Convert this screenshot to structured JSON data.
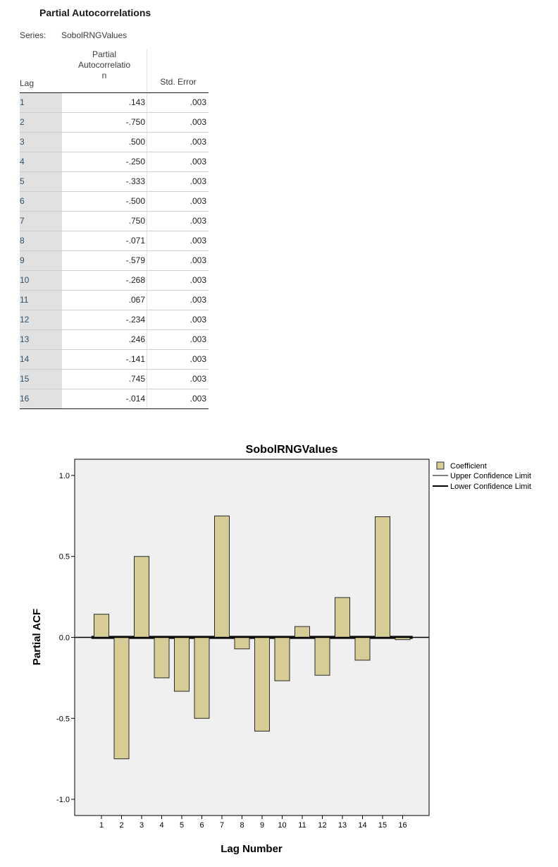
{
  "table": {
    "title": "Partial Autocorrelations",
    "series_label": "Series:",
    "series_name": "SobolRNGValues",
    "headers": {
      "lag": "Lag",
      "pacf_line1": "Partial",
      "pacf_line2": "Autocorrelatio",
      "pacf_line3": "n",
      "std_error": "Std. Error"
    },
    "rows": [
      {
        "lag": "1",
        "pacf": ".143",
        "se": ".003"
      },
      {
        "lag": "2",
        "pacf": "-.750",
        "se": ".003"
      },
      {
        "lag": "3",
        "pacf": ".500",
        "se": ".003"
      },
      {
        "lag": "4",
        "pacf": "-.250",
        "se": ".003"
      },
      {
        "lag": "5",
        "pacf": "-.333",
        "se": ".003"
      },
      {
        "lag": "6",
        "pacf": "-.500",
        "se": ".003"
      },
      {
        "lag": "7",
        "pacf": ".750",
        "se": ".003"
      },
      {
        "lag": "8",
        "pacf": "-.071",
        "se": ".003"
      },
      {
        "lag": "9",
        "pacf": "-.579",
        "se": ".003"
      },
      {
        "lag": "10",
        "pacf": "-.268",
        "se": ".003"
      },
      {
        "lag": "11",
        "pacf": ".067",
        "se": ".003"
      },
      {
        "lag": "12",
        "pacf": "-.234",
        "se": ".003"
      },
      {
        "lag": "13",
        "pacf": ".246",
        "se": ".003"
      },
      {
        "lag": "14",
        "pacf": "-.141",
        "se": ".003"
      },
      {
        "lag": "15",
        "pacf": ".745",
        "se": ".003"
      },
      {
        "lag": "16",
        "pacf": "-.014",
        "se": ".003"
      }
    ]
  },
  "chart_data": {
    "type": "bar",
    "title": "SobolRNGValues",
    "xlabel": "Lag Number",
    "ylabel": "Partial ACF",
    "categories": [
      "1",
      "2",
      "3",
      "4",
      "5",
      "6",
      "7",
      "8",
      "9",
      "10",
      "11",
      "12",
      "13",
      "14",
      "15",
      "16"
    ],
    "series": [
      {
        "name": "Coefficient",
        "values": [
          0.143,
          -0.75,
          0.5,
          -0.25,
          -0.333,
          -0.5,
          0.75,
          -0.071,
          -0.579,
          -0.268,
          0.067,
          -0.234,
          0.246,
          -0.141,
          0.745,
          -0.014
        ]
      }
    ],
    "confidence_limits": {
      "upper_name": "Upper Confidence Limit",
      "lower_name": "Lower Confidence Limit",
      "upper": [
        0.006,
        0.006,
        0.006,
        0.006,
        0.006,
        0.006,
        0.006,
        0.006,
        0.006,
        0.006,
        0.006,
        0.006,
        0.006,
        0.006,
        0.006,
        0.006
      ],
      "lower": [
        -0.006,
        -0.006,
        -0.006,
        -0.006,
        -0.006,
        -0.006,
        -0.006,
        -0.006,
        -0.006,
        -0.006,
        -0.006,
        -0.006,
        -0.006,
        -0.006,
        -0.006,
        -0.006
      ]
    },
    "ylim": [
      -1.1,
      1.1
    ],
    "yticks": [
      1.0,
      0.5,
      0.0,
      -0.5,
      -1.0
    ],
    "ytick_labels": [
      "1.0",
      "0.5",
      "0.0",
      "-0.5",
      "-1.0"
    ],
    "legend_position": "top-right",
    "grid": false,
    "colors": {
      "bar_fill": "#d6cd96",
      "bar_stroke": "#2a2a2a",
      "plot_background": "#f0f0f0",
      "limit_line": "#000000"
    }
  }
}
